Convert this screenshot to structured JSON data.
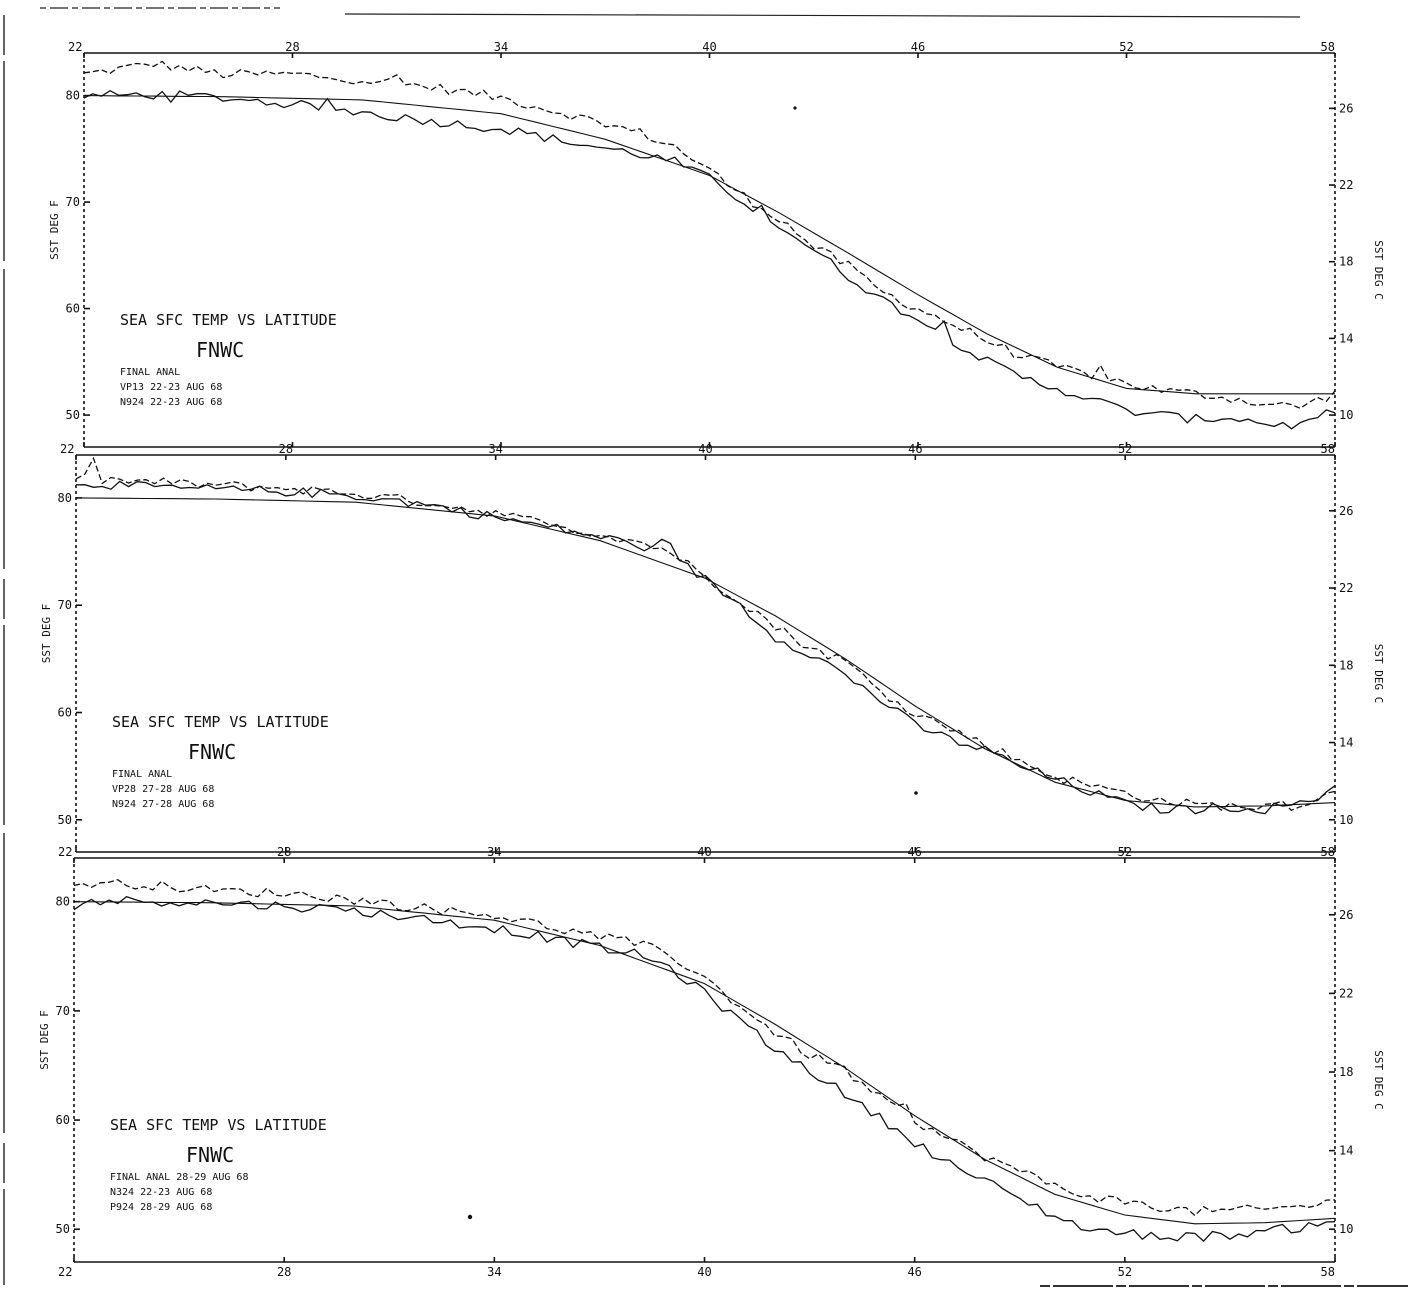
{
  "chart_data": [
    {
      "type": "line",
      "title": "SEA SFC TEMP VS LATITUDE",
      "subtitle": "FNWC",
      "ylabel": "SST DEG F",
      "ylabel_right": "SST DEG C",
      "x_ticks": [
        "22",
        "28",
        "34",
        "40",
        "46",
        "52",
        "58"
      ],
      "x_tick_labels": [
        "22",
        "28",
        "34",
        "40",
        "46",
        "52",
        "58"
      ],
      "xlim": [
        22,
        58
      ],
      "y_ticks": [
        50,
        60,
        70,
        80
      ],
      "y_tick_labels": [
        "50",
        "60",
        "70",
        "80"
      ],
      "ylim": [
        47,
        84
      ],
      "y2_ticks": [
        10,
        14,
        18,
        22,
        26
      ],
      "y2_tick_labels": [
        "10",
        "14",
        "18",
        "22",
        "26"
      ],
      "legend": [
        "FINAL ANAL",
        "VP13  22-23 AUG 68",
        "N924  22-23 AUG 68"
      ],
      "series": [
        {
          "name": "FINAL ANAL",
          "style": "smooth",
          "x": [
            22,
            26,
            30,
            34,
            37,
            40,
            42,
            44,
            46,
            48,
            50,
            52,
            54,
            56,
            58
          ],
          "values": [
            80.0,
            79.9,
            79.6,
            78.3,
            75.9,
            72.5,
            69.0,
            65.2,
            61.3,
            57.6,
            54.5,
            52.5,
            52.0,
            52.0,
            52.0
          ]
        },
        {
          "name": "VP13  22-23 AUG 68",
          "style": "noisy",
          "x": [
            22,
            24,
            26,
            28,
            30,
            32,
            34,
            36,
            38,
            39,
            40,
            41,
            42,
            43,
            44,
            45,
            46,
            47,
            48,
            49,
            50,
            51,
            52,
            53,
            54,
            55,
            56,
            57,
            58
          ],
          "values": [
            82.0,
            83.0,
            82.0,
            82.0,
            81.5,
            80.8,
            79.8,
            78.2,
            76.5,
            75.2,
            73.0,
            70.5,
            68.5,
            65.8,
            64.0,
            61.5,
            60.0,
            58.5,
            57.0,
            55.5,
            54.5,
            53.8,
            53.0,
            52.3,
            52.0,
            51.6,
            51.0,
            50.8,
            52.0
          ]
        },
        {
          "name": "N924  22-23 AUG 68",
          "style": "noisy",
          "x": [
            22,
            24,
            26,
            28,
            30,
            32,
            34,
            36,
            38,
            39,
            40,
            41,
            42,
            43,
            44,
            45,
            46,
            47,
            48,
            49,
            50,
            51,
            52,
            53,
            54,
            55,
            56,
            57,
            58
          ],
          "values": [
            80.0,
            80.1,
            79.8,
            79.2,
            78.4,
            77.6,
            76.9,
            75.6,
            74.5,
            73.8,
            72.2,
            70.0,
            67.8,
            65.5,
            63.0,
            60.8,
            59.0,
            57.0,
            55.0,
            53.5,
            52.5,
            51.5,
            50.4,
            50.0,
            49.6,
            49.8,
            49.2,
            49.0,
            50.5
          ]
        }
      ],
      "x_sample_step": 0.25
    },
    {
      "type": "line",
      "title": "SEA SFC TEMP VS LATITUDE",
      "subtitle": "FNWC",
      "ylabel": "SST DEG F",
      "ylabel_right": "SST DEG C",
      "x_ticks": [
        "22",
        "28",
        "34",
        "40",
        "46",
        "52",
        "58"
      ],
      "x_tick_labels": [
        "22",
        "28",
        "34",
        "40",
        "46",
        "52",
        "58"
      ],
      "xlim": [
        22,
        58
      ],
      "y_ticks": [
        50,
        60,
        70,
        80
      ],
      "y_tick_labels": [
        "50",
        "60",
        "70",
        "80"
      ],
      "ylim": [
        47,
        84
      ],
      "y2_ticks": [
        10,
        14,
        18,
        22,
        26
      ],
      "y2_tick_labels": [
        "10",
        "14",
        "18",
        "22",
        "26"
      ],
      "legend": [
        "FINAL ANAL",
        "VP28  27-28 AUG 68",
        "N924  27-28 AUG 68"
      ],
      "series": [
        {
          "name": "FINAL ANAL",
          "style": "smooth",
          "x": [
            22,
            26,
            30,
            34,
            37,
            40,
            42,
            44,
            46,
            48,
            50,
            52,
            54,
            56,
            58
          ],
          "values": [
            80.0,
            79.9,
            79.6,
            78.3,
            76.0,
            72.5,
            69.0,
            65.0,
            60.6,
            56.6,
            53.5,
            51.8,
            51.2,
            51.3,
            51.6
          ]
        },
        {
          "name": "VP28  27-28 AUG 68",
          "style": "noisy",
          "x": [
            22,
            24,
            26,
            28,
            30,
            32,
            34,
            36,
            38,
            39,
            40,
            41,
            42,
            43,
            44,
            45,
            46,
            47,
            48,
            49,
            50,
            51,
            52,
            53,
            54,
            55,
            56,
            57,
            58
          ],
          "values": [
            81.8,
            81.5,
            81.2,
            80.9,
            80.4,
            79.6,
            78.6,
            77.2,
            76.0,
            75.0,
            72.6,
            70.5,
            68.0,
            66.0,
            64.8,
            62.0,
            60.0,
            58.5,
            57.0,
            55.5,
            54.0,
            53.2,
            52.5,
            51.8,
            51.4,
            51.3,
            51.2,
            51.5,
            52.5
          ]
        },
        {
          "name": "N924  27-28 AUG 68",
          "style": "noisy",
          "x": [
            22,
            24,
            26,
            28,
            30,
            32,
            34,
            36,
            38,
            39,
            40,
            41,
            42,
            43,
            44,
            45,
            46,
            47,
            48,
            49,
            50,
            51,
            52,
            53,
            54,
            55,
            56,
            57,
            58
          ],
          "values": [
            81.5,
            81.0,
            80.8,
            80.6,
            80.2,
            79.4,
            78.2,
            77.0,
            75.7,
            74.6,
            72.4,
            70.0,
            67.0,
            65.5,
            63.5,
            61.2,
            58.8,
            57.5,
            56.5,
            55.0,
            53.8,
            52.6,
            51.5,
            51.0,
            51.0,
            51.2,
            51.0,
            51.6,
            52.8
          ]
        }
      ],
      "x_sample_step": 0.25
    },
    {
      "type": "line",
      "title": "SEA SFC TEMP VS LATITUDE",
      "subtitle": "FNWC",
      "ylabel": "SST DEG F",
      "ylabel_right": "SST DEG C",
      "x_ticks": [
        "22",
        "28",
        "34",
        "40",
        "46",
        "52",
        "58"
      ],
      "x_tick_labels": [
        "22",
        "28",
        "34",
        "40",
        "46",
        "52",
        "58"
      ],
      "xlim": [
        22,
        58
      ],
      "y_ticks": [
        50,
        60,
        70,
        80
      ],
      "y_tick_labels": [
        "50",
        "60",
        "70",
        "80"
      ],
      "ylim": [
        47,
        84
      ],
      "y2_ticks": [
        10,
        14,
        18,
        22,
        26
      ],
      "y2_tick_labels": [
        "10",
        "14",
        "18",
        "22",
        "26"
      ],
      "legend": [
        "FINAL ANAL  28-29 AUG 68",
        "N324  22-23 AUG 68",
        "P924  28-29 AUG 68"
      ],
      "series": [
        {
          "name": "FINAL ANAL  28-29 AUG 68",
          "style": "smooth",
          "x": [
            22,
            26,
            30,
            34,
            37,
            40,
            42,
            44,
            46,
            48,
            50,
            52,
            54,
            56,
            58
          ],
          "values": [
            80.0,
            79.9,
            79.6,
            78.3,
            76.0,
            72.5,
            68.8,
            64.8,
            60.4,
            56.4,
            53.2,
            51.3,
            50.5,
            50.6,
            51.0
          ]
        },
        {
          "name": "N324  22-23 AUG 68",
          "style": "noisy",
          "x": [
            22,
            24,
            26,
            28,
            30,
            32,
            34,
            36,
            38,
            39,
            40,
            41,
            42,
            43,
            44,
            45,
            46,
            47,
            48,
            49,
            50,
            51,
            52,
            53,
            54,
            55,
            56,
            57,
            58
          ],
          "values": [
            81.7,
            81.6,
            81.0,
            80.8,
            80.2,
            79.4,
            78.8,
            77.4,
            76.2,
            75.2,
            73.0,
            70.5,
            68.0,
            66.0,
            64.6,
            62.0,
            60.0,
            58.2,
            56.7,
            55.3,
            54.0,
            53.0,
            52.5,
            52.0,
            51.6,
            51.7,
            51.8,
            52.1,
            52.5
          ]
        },
        {
          "name": "P924  28-29 AUG 68",
          "style": "noisy",
          "x": [
            22,
            24,
            26,
            28,
            30,
            32,
            34,
            36,
            38,
            39,
            40,
            41,
            42,
            43,
            44,
            45,
            46,
            47,
            48,
            49,
            50,
            51,
            52,
            53,
            54,
            55,
            56,
            57,
            58
          ],
          "values": [
            80.0,
            80.1,
            79.9,
            79.6,
            79.2,
            78.4,
            77.6,
            76.4,
            75.2,
            74.0,
            71.6,
            69.2,
            66.5,
            64.6,
            62.4,
            60.2,
            58.0,
            56.0,
            54.4,
            52.8,
            51.2,
            50.0,
            49.6,
            49.4,
            49.3,
            49.5,
            49.8,
            50.2,
            51.0
          ]
        }
      ],
      "x_sample_step": 0.25
    }
  ]
}
